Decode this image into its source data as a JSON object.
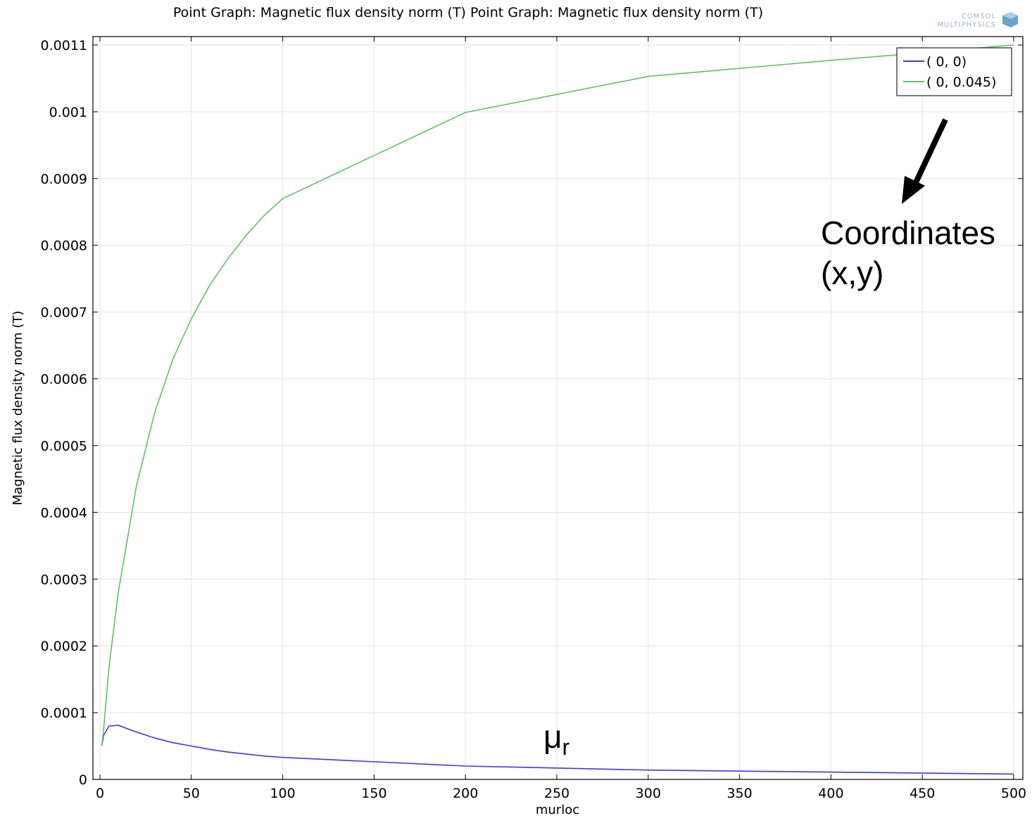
{
  "chart_data": {
    "type": "line",
    "title": "Point Graph: Magnetic flux density norm (T)  Point Graph: Magnetic flux density norm (T)",
    "xlabel": "murloc",
    "ylabel": "Magnetic flux density norm (T)",
    "xlim": [
      0,
      500
    ],
    "ylim": [
      0,
      0.0011
    ],
    "xticks": [
      0,
      50,
      100,
      150,
      200,
      250,
      300,
      350,
      400,
      450,
      500
    ],
    "xtick_labels": [
      "0",
      "50",
      "100",
      "150",
      "200",
      "250",
      "300",
      "350",
      "400",
      "450",
      "500"
    ],
    "yticks": [
      0,
      0.0001,
      0.0002,
      0.0003,
      0.0004,
      0.0005,
      0.0006,
      0.0007,
      0.0008,
      0.0009,
      0.001,
      0.0011
    ],
    "ytick_labels": [
      "0",
      "0.0001",
      "0.0002",
      "0.0003",
      "0.0004",
      "0.0005",
      "0.0006",
      "0.0007",
      "0.0008",
      "0.0009",
      "0.001",
      "0.0011"
    ],
    "grid": true,
    "legend_position": "top-right",
    "series": [
      {
        "name": "( 0,  0)",
        "color": "#3a3ae0",
        "x": [
          1,
          2,
          5,
          10,
          20,
          30,
          40,
          50,
          60,
          70,
          80,
          90,
          100,
          200,
          300,
          400,
          500
        ],
        "y": [
          5e-05,
          6.6e-05,
          8e-05,
          8.1e-05,
          7.1e-05,
          6.2e-05,
          5.5e-05,
          5e-05,
          4.5e-05,
          4.1e-05,
          3.8e-05,
          3.5e-05,
          3.3e-05,
          2e-05,
          1.4e-05,
          1.1e-05,
          8e-06
        ]
      },
      {
        "name": "( 0, 0.045)",
        "color": "#5ec45e",
        "x": [
          1,
          2,
          5,
          10,
          20,
          30,
          40,
          50,
          60,
          70,
          80,
          90,
          100,
          200,
          300,
          400,
          500
        ],
        "y": [
          5e-05,
          7.5e-05,
          0.00017,
          0.00028,
          0.00044,
          0.00055,
          0.00063,
          0.00069,
          0.00074,
          0.00078,
          0.000815,
          0.000845,
          0.00087,
          0.000999,
          0.001053,
          0.001077,
          0.0011
        ]
      }
    ],
    "annotations": {
      "coordinates_label": "Coordinates",
      "xy_label": "(x,y)",
      "mu_label": "μ",
      "mu_subscript": "r"
    }
  },
  "logo": {
    "line1": "COMSOL",
    "line2": "MULTIPHYSICS"
  },
  "colors": {
    "grid": "#e3e3e3",
    "axis": "#000000"
  }
}
